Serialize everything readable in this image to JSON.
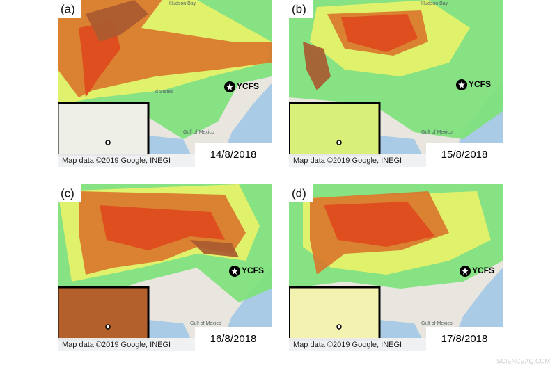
{
  "panels": [
    {
      "label": "(a)",
      "station": "YCFS",
      "attribution": "Map data ©2019 Google, INEGI",
      "date": "14/8/2018",
      "map_labels": [
        "Hudson Bay",
        "d States",
        "Gulf of Mexico"
      ]
    },
    {
      "label": "(b)",
      "station": "YCFS",
      "attribution": "Map data ©2019 Google, INEGI",
      "date": "15/8/2018",
      "map_labels": [
        "Hudson Bay",
        "Gulf of Mexico"
      ]
    },
    {
      "label": "(c)",
      "station": "YCFS",
      "attribution": "Map data ©2019 Google, INEGI",
      "date": "16/8/2018",
      "map_labels": [
        "Gulf of Mexico"
      ]
    },
    {
      "label": "(d)",
      "station": "YCFS",
      "attribution": "Map data ©2019 Google, INEGI",
      "date": "17/8/2018",
      "map_labels": [
        "Gulf of Mexico"
      ]
    }
  ],
  "watermark": "SCIENCEAQ.COM"
}
